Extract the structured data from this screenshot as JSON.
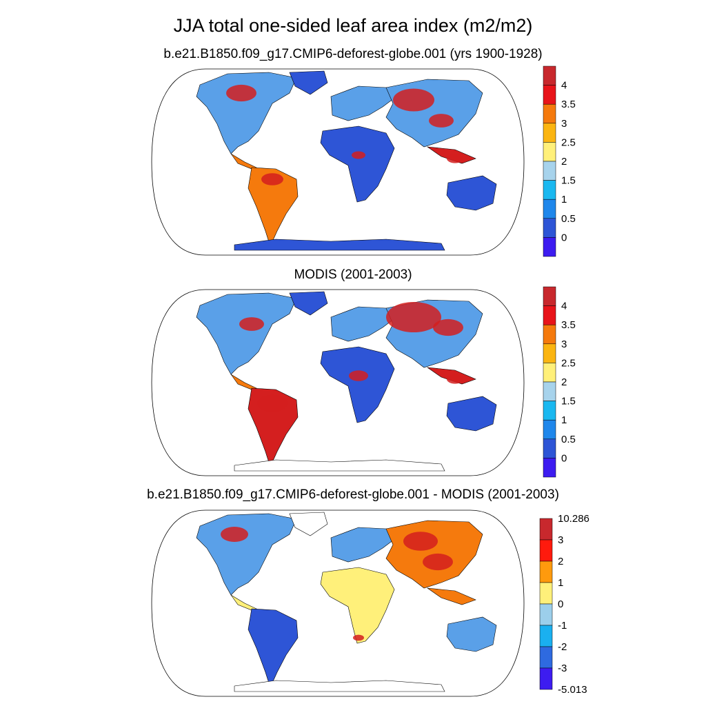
{
  "title": "JJA total one-sided leaf area index (m2/m2)",
  "panels": [
    {
      "title": "b.e21.B1850.f09_g17.CMIP6-deforest-globe.001 (yrs 1900-1928)",
      "colorbar": {
        "labels": [
          "4",
          "3.5",
          "3",
          "2.5",
          "2",
          "1.5",
          "1",
          "0.5",
          "0"
        ],
        "colors": [
          "#c8282d",
          "#e8141a",
          "#f57a0d",
          "#fbb511",
          "#fff07a",
          "#a7d3ec",
          "#1ab8f0",
          "#1f87eb",
          "#2e55d6",
          "#3d1cf0"
        ]
      }
    },
    {
      "title": "MODIS (2001-2003)",
      "colorbar": {
        "labels": [
          "4",
          "3.5",
          "3",
          "2.5",
          "2",
          "1.5",
          "1",
          "0.5",
          "0"
        ],
        "colors": [
          "#c8282d",
          "#e8141a",
          "#f57a0d",
          "#fbb511",
          "#fff07a",
          "#a7d3ec",
          "#1ab8f0",
          "#1f87eb",
          "#2e55d6",
          "#3d1cf0"
        ]
      }
    },
    {
      "title": "b.e21.B1850.f09_g17.CMIP6-deforest-globe.001 - MODIS (2001-2003)",
      "colorbar": {
        "labels": [
          "10.286",
          "3",
          "2",
          "1",
          "0",
          "-1",
          "-2",
          "-3",
          "-5.013"
        ],
        "colors": [
          "#c8282d",
          "#ff1a0d",
          "#ff9a0d",
          "#fff07a",
          "#9ccfeb",
          "#1ab0f0",
          "#2e6ae0",
          "#3d1cf0"
        ]
      }
    }
  ],
  "palette": {
    "low": "#2e55d6",
    "mid_low": "#5aa0e8",
    "mid": "#fff07a",
    "high": "#f57a0d",
    "peak": "#d41f1f"
  }
}
